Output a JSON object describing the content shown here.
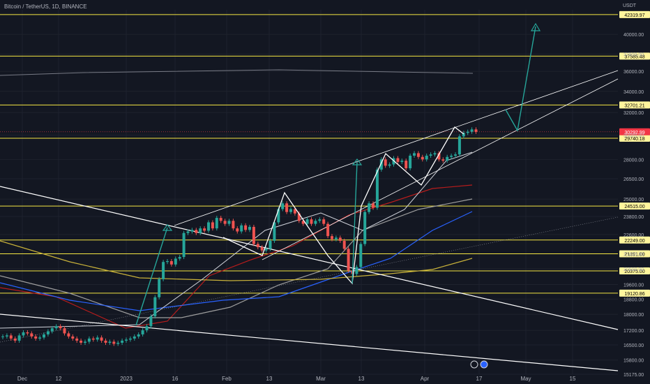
{
  "chart_data": {
    "type": "candlestick",
    "title": "Bitcoin / TetherUS, 1D, BINANCE",
    "unit": "USDT",
    "x_tick_labels": [
      "Dec",
      "12",
      "2023",
      "16",
      "Feb",
      "13",
      "Mar",
      "13",
      "Apr",
      "17",
      "May",
      "15"
    ],
    "y_tick_labels": [
      "40000.00",
      "37800.00",
      "36000.00",
      "34000.00",
      "32000.00",
      "30000.00",
      "28000.00",
      "26500.00",
      "25000.00",
      "23800.00",
      "22600.00",
      "21400.00",
      "20500.00",
      "19600.00",
      "18800.00",
      "18000.00",
      "17200.00",
      "16500.00",
      "15800.00",
      "15175.00"
    ],
    "ylim": [
      15175,
      42900
    ],
    "y_scale": "log",
    "current_price": "30292.99",
    "horizontal_levels": [
      "42319.97",
      "37585.48",
      "32701.21",
      "29740.18",
      "24515.00",
      "22249.00",
      "21391.00",
      "20375.00",
      "19120.86"
    ],
    "price_path_close": [
      16900,
      16950,
      16800,
      16700,
      16950,
      17100,
      17050,
      16900,
      16800,
      16850,
      17000,
      17150,
      17300,
      17400,
      17300,
      17050,
      16900,
      16800,
      16700,
      16600,
      16650,
      16800,
      16750,
      16850,
      16700,
      16600,
      16650,
      16550,
      16600,
      16700,
      16750,
      16800,
      16900,
      17000,
      17200,
      17400,
      17900,
      18900,
      19900,
      20900,
      20950,
      20750,
      21100,
      21200,
      22700,
      22800,
      22900,
      22700,
      23000,
      22850,
      23400,
      23000,
      23700,
      23500,
      23300,
      23500,
      23000,
      22800,
      23200,
      22900,
      23100,
      22000,
      21800,
      21600,
      21700,
      22200,
      23400,
      24300,
      24700,
      24100,
      24300,
      24000,
      23500,
      23300,
      23600,
      23300,
      23500,
      23600,
      23300,
      22500,
      22300,
      22400,
      22200,
      21700,
      20400,
      20200,
      20600,
      22000,
      24100,
      24700,
      24400,
      27200,
      28000,
      27500,
      27600,
      28100,
      27800,
      27900,
      27300,
      28300,
      28500,
      28200,
      28000,
      28300,
      28400,
      28500,
      28000,
      27900,
      28200,
      28300,
      28400,
      29900,
      30200,
      30300,
      30500,
      30290
    ]
  }
}
